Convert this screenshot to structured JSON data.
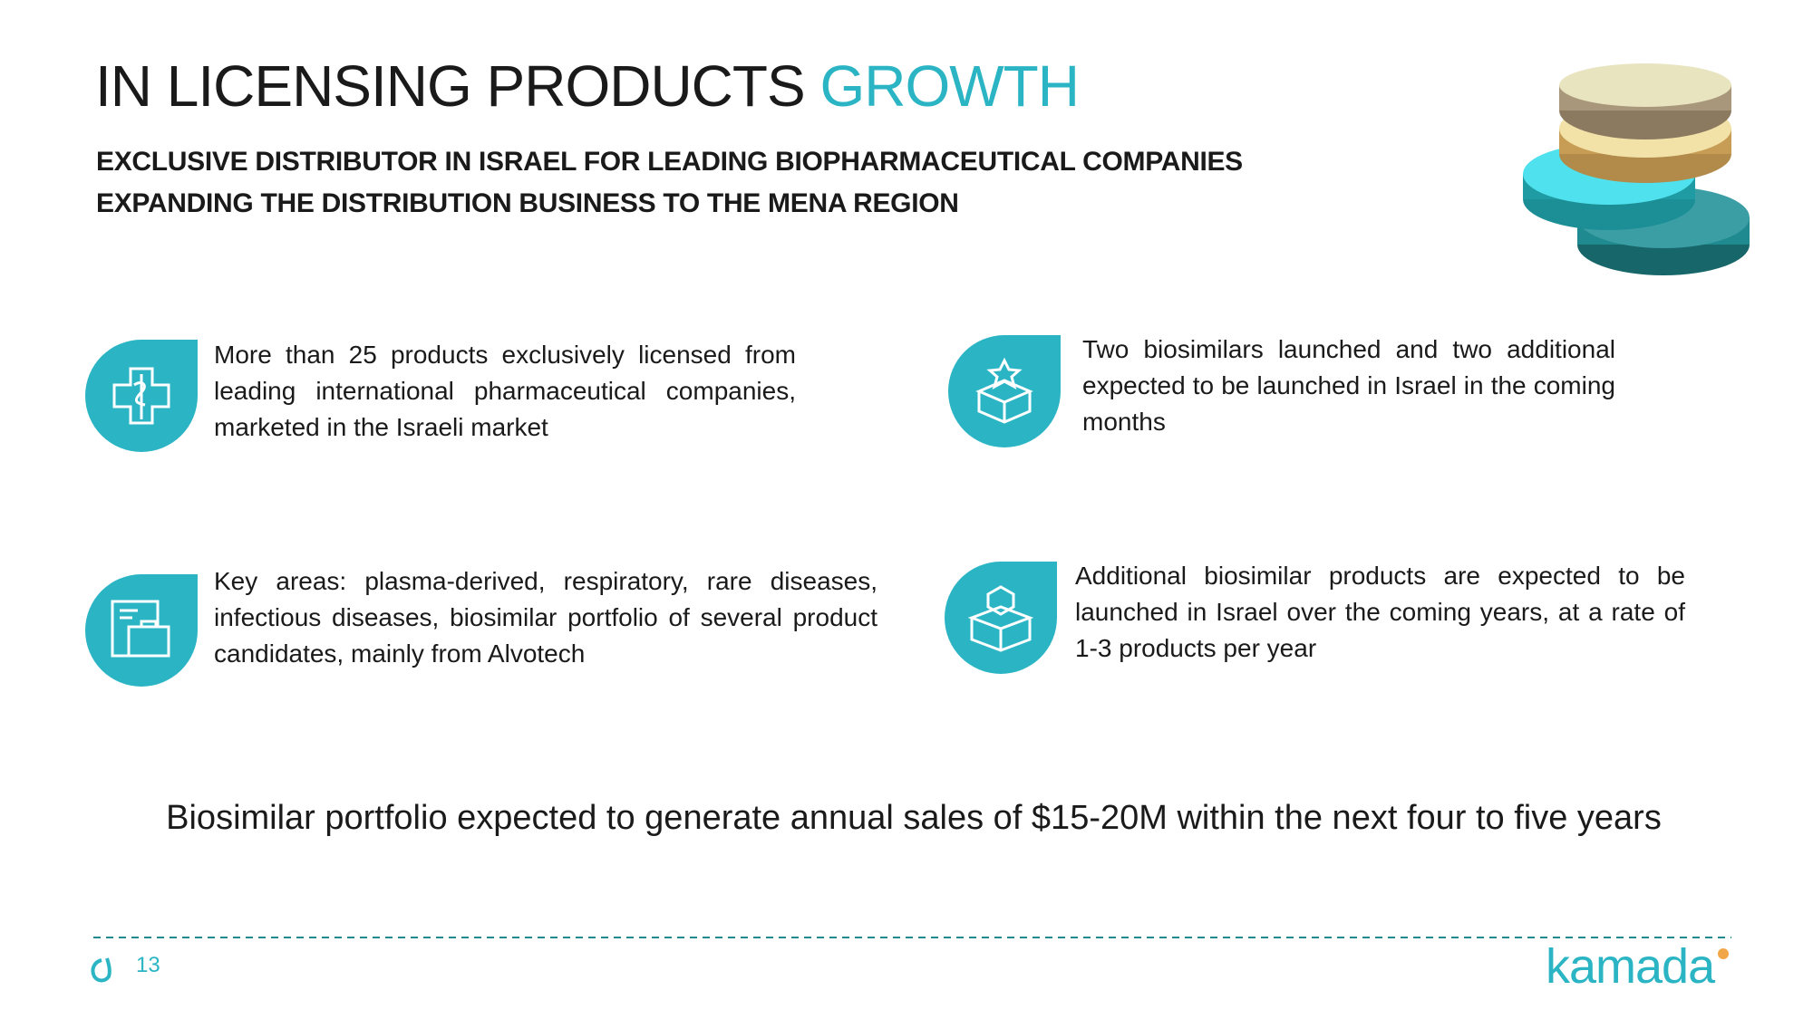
{
  "header": {
    "title": "IN LICENSING PRODUCTS",
    "title_accent": "GROWTH",
    "subtitle_lines": [
      "EXCLUSIVE DISTRIBUTOR IN ISRAEL FOR LEADING BIOPHARMACEUTICAL COMPANIES",
      "EXPANDING THE DISTRIBUTION BUSINESS TO THE MENA REGION"
    ]
  },
  "items": [
    {
      "text": "More than 25 products exclusively licensed from leading international pharmaceutical companies, marketed in the Israeli market"
    },
    {
      "text": "Two biosimilars launched and two additional expected to be launched in Israel in the coming months"
    },
    {
      "text": "Key areas: plasma-derived, respiratory, rare diseases, infectious diseases, biosimilar portfolio of several product candidates, mainly from Alvotech"
    },
    {
      "text": "Additional biosimilar products are expected to be launched in Israel over the coming years, at a rate of 1-3 products per year"
    }
  ],
  "statement": "Biosimilar portfolio expected to generate annual sales of $15-20M within the next four to five years",
  "footer": {
    "page_number": "13",
    "logo": "kamada"
  }
}
